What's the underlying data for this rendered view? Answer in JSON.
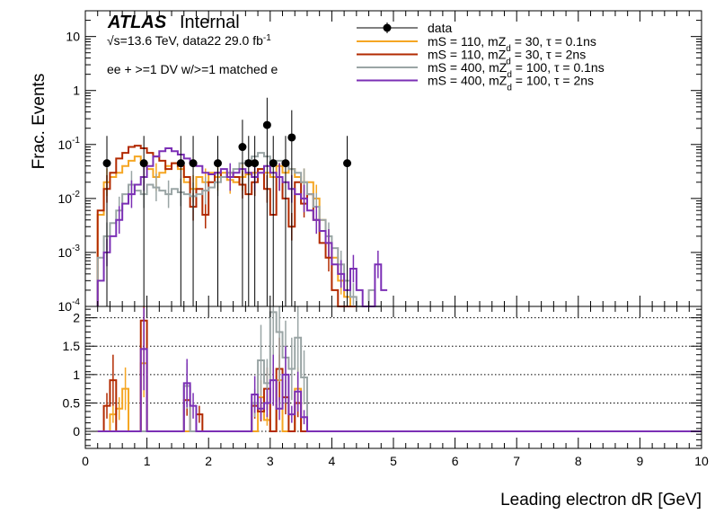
{
  "chart_data": [
    {
      "type": "line",
      "panel": "main",
      "xlabel": "Leading electron dR [GeV]",
      "ylabel": "Frac. Events",
      "yscale": "log",
      "xlim": [
        0,
        10
      ],
      "ylim": [
        0.0001,
        30
      ],
      "x_ticks": [
        0,
        1,
        2,
        3,
        4,
        5,
        6,
        7,
        8,
        9,
        10
      ],
      "y_ticks": [
        {
          "value": 0.0001,
          "label": "10^-4"
        },
        {
          "value": 0.001,
          "label": "10^-3"
        },
        {
          "value": 0.01,
          "label": "10^-2"
        },
        {
          "value": 0.1,
          "label": "10^-1"
        },
        {
          "value": 1,
          "label": "1"
        },
        {
          "value": 10,
          "label": "10"
        }
      ],
      "atlas_label": {
        "bold": "ATLAS",
        "normal": "Internal"
      },
      "energy_text": "√s=13.6 TeV, data22 29.0 fb",
      "energy_sup": "-1",
      "selection_text": "ee + >=1 DV w/>=1 matched e",
      "legend_position": "top-right",
      "data_points": {
        "name": "data",
        "x": [
          0.35,
          0.95,
          1.55,
          1.75,
          2.15,
          2.55,
          2.65,
          2.75,
          2.95,
          3.05,
          3.25,
          3.35,
          4.25
        ],
        "y": [
          0.045,
          0.045,
          0.045,
          0.045,
          0.045,
          0.09,
          0.045,
          0.045,
          0.23,
          0.045,
          0.045,
          0.135,
          0.045
        ]
      },
      "bin_width": 0.1,
      "series": [
        {
          "name_prefix": "mS = 110, mZ",
          "name_sub": "d",
          "name_suffix": " = 30, τ = 0.1ns",
          "color": "#f5a623",
          "x_start": 0.2,
          "y": [
            0.005,
            0.02,
            0.025,
            0.03,
            0.04,
            0.05,
            0.06,
            0.045,
            0.035,
            0.025,
            0.03,
            0.04,
            0.045,
            0.035,
            0.02,
            0.015,
            0.025,
            0.02,
            0.03,
            0.025,
            0.03,
            0.022,
            0.02,
            0.025,
            0.028,
            0.03,
            0.035,
            0.03,
            0.025,
            0.04,
            0.03,
            0.035,
            0.025,
            0.02,
            0.02,
            0.01,
            0.004,
            0.0015,
            0.0008,
            0.0003,
            0.00015,
            0.0001
          ]
        },
        {
          "name_prefix": "mS = 110, mZ",
          "name_sub": "d",
          "name_suffix": " = 30, τ = 2ns",
          "color": "#b22a00",
          "x_start": 0.2,
          "y": [
            0.006,
            0.015,
            0.03,
            0.055,
            0.07,
            0.09,
            0.095,
            0.085,
            0.07,
            0.06,
            0.05,
            0.035,
            0.045,
            0.04,
            0.025,
            0.007,
            0.015,
            0.005,
            0.02,
            0.03,
            0.025,
            0.03,
            0.025,
            0.018,
            0.012,
            0.02,
            0.035,
            0.015,
            0.005,
            0.025,
            0.01,
            0.003,
            0.02,
            0.008,
            0.012,
            0.004,
            0.0015,
            0.0008,
            0.0002,
            0.0001,
            0.0001,
            0.0001
          ]
        },
        {
          "name_prefix": "mS = 400, mZ",
          "name_sub": "d",
          "name_suffix": " = 100, τ = 0.1ns",
          "color": "#9aa5a5",
          "x_start": 0.2,
          "y": [
            0.0008,
            0.002,
            0.0035,
            0.006,
            0.012,
            0.018,
            0.014,
            0.012,
            0.018,
            0.016,
            0.014,
            0.012,
            0.015,
            0.013,
            0.012,
            0.011,
            0.012,
            0.014,
            0.016,
            0.02,
            0.025,
            0.03,
            0.035,
            0.045,
            0.05,
            0.06,
            0.07,
            0.06,
            0.045,
            0.05,
            0.045,
            0.035,
            0.03,
            0.02,
            0.012,
            0.007,
            0.004,
            0.002,
            0.0012,
            0.0006,
            0.0003,
            0.00015,
            0.0001,
            0.0001,
            0.0002,
            0.0001
          ]
        },
        {
          "name_prefix": "mS = 400, mZ",
          "name_sub": "d",
          "name_suffix": " = 100, τ = 2ns",
          "color": "#7b2fb5",
          "x_start": 0.2,
          "y": [
            0.0003,
            0.001,
            0.002,
            0.004,
            0.008,
            0.012,
            0.018,
            0.025,
            0.04,
            0.06,
            0.075,
            0.085,
            0.075,
            0.065,
            0.055,
            0.045,
            0.04,
            0.03,
            0.028,
            0.03,
            0.035,
            0.025,
            0.03,
            0.035,
            0.03,
            0.025,
            0.03,
            0.04,
            0.03,
            0.025,
            0.02,
            0.015,
            0.012,
            0.01,
            0.006,
            0.004,
            0.0025,
            0.0015,
            0.0006,
            0.0004,
            0.0002,
            0.0005,
            0.0002,
            0.0001,
            0.0001,
            0.0006,
            0.0002
          ]
        }
      ]
    },
    {
      "type": "line",
      "panel": "ratio",
      "xlim": [
        0,
        10
      ],
      "ylim": [
        -0.3,
        2.2
      ],
      "y_ticks": [
        0,
        0.5,
        1,
        1.5,
        2
      ],
      "bin_width": 0.1,
      "series": [
        {
          "color": "#f5a623",
          "x_start": 0.2,
          "y": [
            0,
            0,
            0.3,
            0.4,
            0.75,
            0,
            0,
            1.2,
            0,
            0,
            0,
            0,
            0,
            0,
            0,
            0,
            0,
            0,
            0,
            0,
            0,
            0,
            0,
            0,
            0,
            0,
            0.6,
            0.2,
            0,
            0.9,
            0,
            0,
            0.75,
            0,
            0,
            0,
            0,
            0,
            0,
            0,
            0,
            0
          ]
        },
        {
          "color": "#b22a00",
          "x_start": 0.2,
          "y": [
            0,
            0.45,
            0.9,
            0,
            0,
            0,
            0,
            1.95,
            0,
            0,
            0,
            0,
            0,
            0,
            0.55,
            0,
            0.3,
            0,
            0,
            0,
            0,
            0,
            0,
            0,
            0,
            0.45,
            0.35,
            0.75,
            0,
            1.1,
            0.6,
            0,
            0.5,
            0,
            0,
            0,
            0,
            0,
            0,
            0,
            0,
            0
          ]
        },
        {
          "color": "#9aa5a5",
          "x_start": 0.2,
          "y": [
            0,
            0,
            0,
            0,
            0,
            0,
            0,
            0,
            0,
            0,
            0,
            0,
            0,
            0,
            0.8,
            0,
            0,
            0,
            0,
            0,
            0,
            0,
            0,
            0,
            0,
            0.5,
            1.25,
            0.85,
            2.1,
            1.75,
            1.3,
            1.1,
            1.65,
            0.95,
            0,
            0,
            0,
            0,
            0,
            0,
            0,
            0,
            0,
            0,
            0,
            0
          ]
        },
        {
          "color": "#7b2fb5",
          "x_start": 0.2,
          "y": [
            0,
            0,
            0,
            0,
            0,
            0,
            0,
            1.45,
            0,
            0,
            0,
            0,
            0,
            0,
            0.85,
            0.45,
            0,
            0,
            0,
            0,
            0,
            0,
            0,
            0,
            0,
            0.65,
            0.4,
            0.5,
            0.9,
            0.4,
            1.0,
            0.3,
            0.7,
            0.25,
            0,
            0,
            0,
            0,
            0,
            0,
            0,
            0,
            0,
            0,
            0,
            0,
            0
          ]
        }
      ]
    }
  ]
}
